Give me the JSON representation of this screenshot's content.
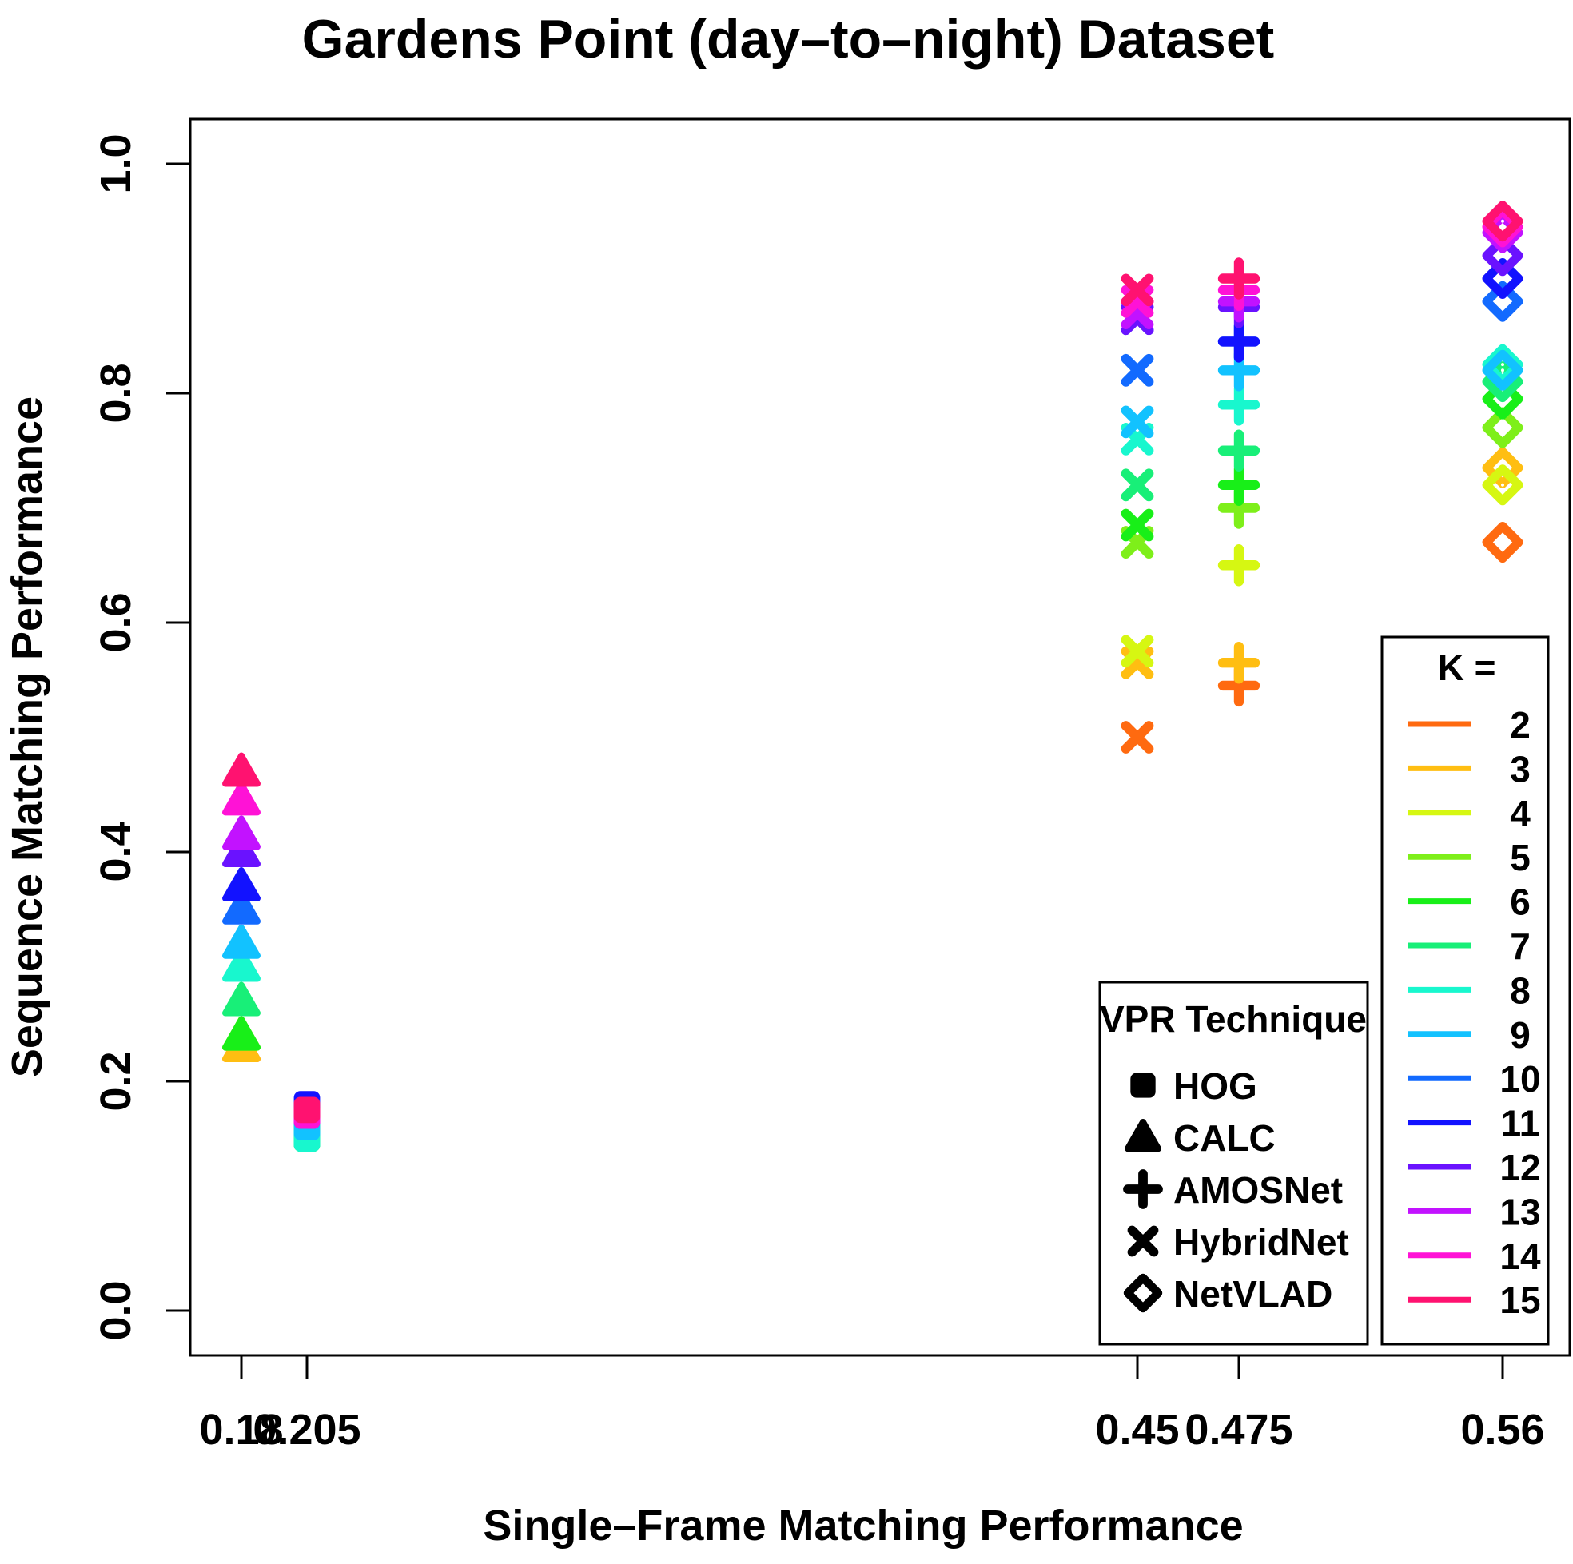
{
  "chart_data": {
    "type": "scatter",
    "title": "Gardens Point (day–to–night) Dataset",
    "xlabel": "Single–Frame Matching Performance",
    "ylabel": "Sequence Matching Performance",
    "x_ticks": [
      "0.18",
      "0.205",
      "0.45",
      "0.475",
      "0.56"
    ],
    "y_ticks": [
      "0.0",
      "0.2",
      "0.4",
      "0.6",
      "0.8",
      "1.0"
    ],
    "ylim": [
      0.0,
      1.0
    ],
    "grid": false,
    "k_legend": {
      "title": "K =",
      "position": "bottom-right",
      "entries": [
        {
          "k": "2",
          "color": "#FF6A10"
        },
        {
          "k": "3",
          "color": "#FFBE12"
        },
        {
          "k": "4",
          "color": "#D6F712"
        },
        {
          "k": "5",
          "color": "#7EEF1A"
        },
        {
          "k": "6",
          "color": "#18EF18"
        },
        {
          "k": "7",
          "color": "#18EF78"
        },
        {
          "k": "8",
          "color": "#18F7CE"
        },
        {
          "k": "9",
          "color": "#12C2FF"
        },
        {
          "k": "10",
          "color": "#126AFF"
        },
        {
          "k": "11",
          "color": "#1212FF"
        },
        {
          "k": "12",
          "color": "#6A12FF"
        },
        {
          "k": "13",
          "color": "#C212FF"
        },
        {
          "k": "14",
          "color": "#FF12D6"
        },
        {
          "k": "15",
          "color": "#FF1270"
        }
      ]
    },
    "technique_legend": {
      "title": "VPR Technique",
      "position": "bottom-right",
      "entries": [
        {
          "name": "HOG",
          "shape": "square"
        },
        {
          "name": "CALC",
          "shape": "triangle"
        },
        {
          "name": "AMOSNet",
          "shape": "plus"
        },
        {
          "name": "HybridNet",
          "shape": "cross"
        },
        {
          "name": "NetVLAD",
          "shape": "diamond"
        }
      ]
    },
    "series": [
      {
        "name": "HOG",
        "shape": "square",
        "x": 0.205,
        "k": [
          2,
          3,
          4,
          5,
          6,
          7,
          8,
          9,
          10,
          11,
          12,
          13,
          14,
          15
        ],
        "y": [
          0.17,
          0.17,
          0.16,
          0.16,
          0.15,
          0.15,
          0.15,
          0.16,
          0.17,
          0.18,
          0.17,
          0.17,
          0.17,
          0.175
        ]
      },
      {
        "name": "CALC",
        "shape": "triangle",
        "x": 0.18,
        "k": [
          2,
          3,
          4,
          5,
          6,
          7,
          8,
          9,
          10,
          11,
          12,
          13,
          14,
          15
        ],
        "y": [
          0.23,
          0.23,
          0.24,
          0.24,
          0.24,
          0.27,
          0.3,
          0.32,
          0.35,
          0.37,
          0.4,
          0.415,
          0.445,
          0.47
        ]
      },
      {
        "name": "AMOSNet",
        "shape": "plus",
        "x": 0.475,
        "k": [
          2,
          3,
          4,
          5,
          6,
          7,
          8,
          9,
          10,
          11,
          12,
          13,
          14,
          15
        ],
        "y": [
          0.545,
          0.565,
          0.65,
          0.7,
          0.72,
          0.75,
          0.79,
          0.82,
          0.845,
          0.845,
          0.875,
          0.88,
          0.89,
          0.9
        ]
      },
      {
        "name": "HybridNet",
        "shape": "cross",
        "x": 0.45,
        "k": [
          2,
          3,
          4,
          5,
          6,
          7,
          8,
          9,
          10,
          11,
          12,
          13,
          14,
          15
        ],
        "y": [
          0.5,
          0.565,
          0.575,
          0.67,
          0.685,
          0.72,
          0.76,
          0.775,
          0.82,
          0.865,
          0.865,
          0.87,
          0.88,
          0.89
        ]
      },
      {
        "name": "NetVLAD",
        "shape": "diamond",
        "x": 0.56,
        "k": [
          2,
          3,
          4,
          5,
          6,
          7,
          8,
          9,
          10,
          11,
          12,
          13,
          14,
          15
        ],
        "y": [
          0.67,
          0.735,
          0.72,
          0.77,
          0.795,
          0.81,
          0.825,
          0.82,
          0.88,
          0.9,
          0.92,
          0.94,
          0.945,
          0.95
        ]
      }
    ]
  }
}
